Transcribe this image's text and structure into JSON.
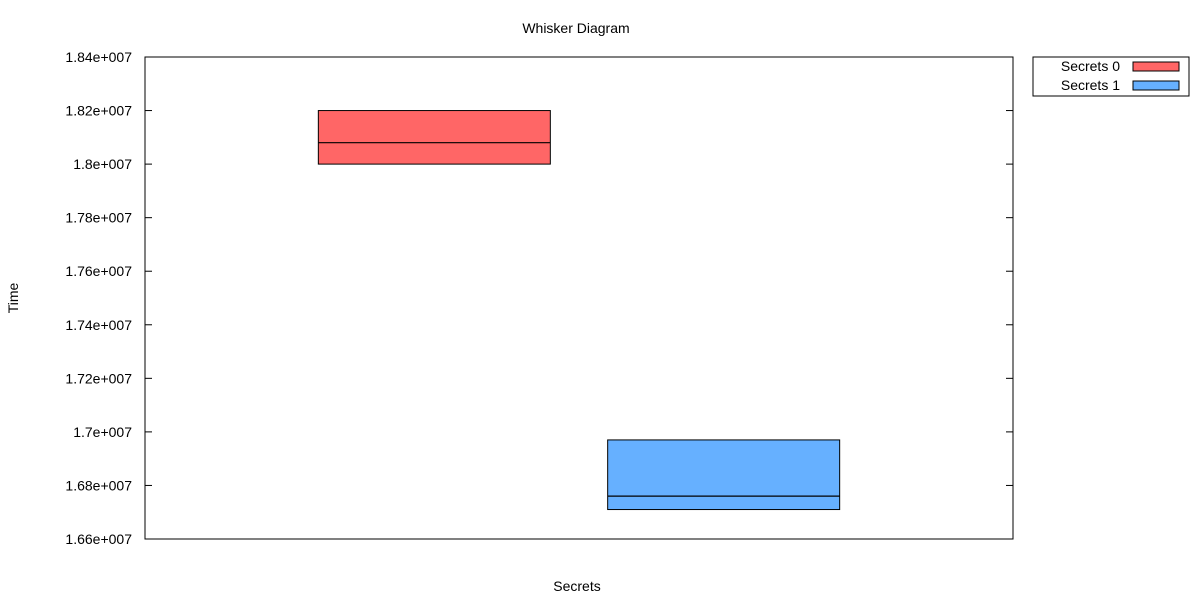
{
  "chart_data": {
    "type": "box",
    "title": "Whisker Diagram",
    "xlabel": "Secrets",
    "ylabel": "Time",
    "ylim": [
      16600000,
      18400000
    ],
    "yticks": [
      16600000,
      16800000,
      17000000,
      17200000,
      17400000,
      17600000,
      17800000,
      18000000,
      18200000,
      18400000
    ],
    "ytick_labels": [
      "1.66e+007",
      "1.68e+007",
      "1.7e+007",
      "1.72e+007",
      "1.74e+007",
      "1.76e+007",
      "1.78e+007",
      "1.8e+007",
      "1.82e+007",
      "1.84e+007"
    ],
    "grid": false,
    "legend_position": "top-right, outside plot",
    "series": [
      {
        "name": "Secrets 0",
        "color": "#ff6666",
        "q1": 18000000,
        "median": 18080000,
        "q3": 18200000
      },
      {
        "name": "Secrets 1",
        "color": "#66b0ff",
        "q1": 16710000,
        "median": 16760000,
        "q3": 16970000
      }
    ]
  }
}
